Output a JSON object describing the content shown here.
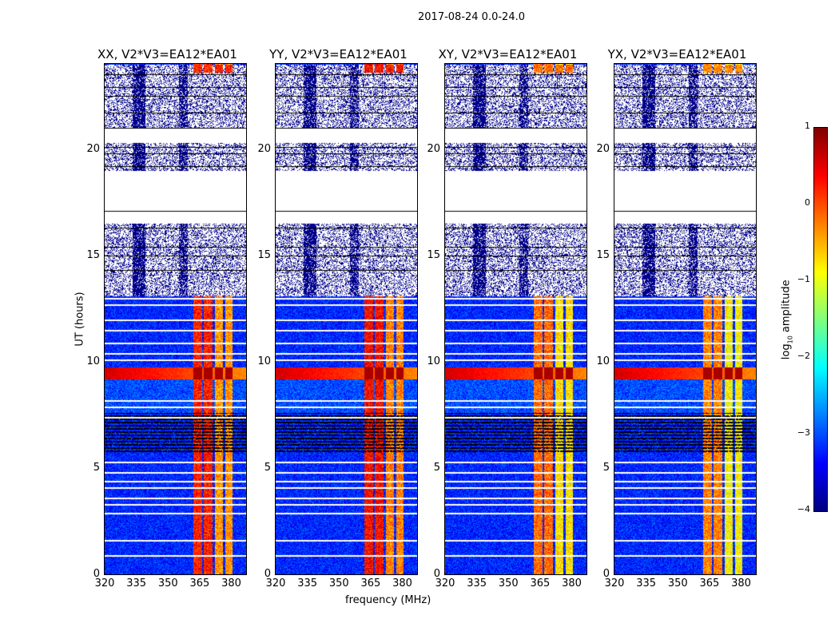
{
  "chart_data": {
    "type": "heatmap",
    "title": "2017-08-24 0.0-24.0",
    "xlabel": "frequency (MHz)",
    "ylabel": "UT (hours)",
    "xlim": [
      320,
      387
    ],
    "ylim": [
      0,
      24
    ],
    "xticks": [
      "320",
      "335",
      "350",
      "365",
      "380"
    ],
    "xtick_values": [
      320,
      335,
      350,
      365,
      380
    ],
    "yticks": [
      "0",
      "5",
      "10",
      "15",
      "20"
    ],
    "ytick_values": [
      0,
      5,
      10,
      15,
      20
    ],
    "colorbar": {
      "label": "log10 amplitude",
      "label_main": "log",
      "label_sub": "10",
      "label_tail": " amplitude",
      "range": [
        -4,
        1
      ],
      "ticks": [
        "1",
        "0",
        "−1",
        "−2",
        "−3",
        "−4"
      ],
      "tick_values": [
        1,
        0,
        -1,
        -2,
        -3,
        -4
      ],
      "colormap": "jet"
    },
    "panels": [
      {
        "title": "XX, V2*V3=EA12*EA01",
        "band_level": 0.0
      },
      {
        "title": "YY, V2*V3=EA12*EA01",
        "band_level": 0.1
      },
      {
        "title": "XY, V2*V3=EA12*EA01",
        "band_level": -0.4
      },
      {
        "title": "YX, V2*V3=EA12*EA01",
        "band_level": -0.5
      }
    ],
    "bands_mhz": [
      [
        362,
        366
      ],
      [
        366.6,
        371
      ],
      [
        372,
        376
      ],
      [
        377,
        380.5
      ]
    ],
    "segments_hours": [
      {
        "from": 0,
        "to": 5.7,
        "kind": "dense",
        "background": -3.2
      },
      {
        "from": 5.7,
        "to": 7.6,
        "kind": "flagged-lines",
        "background": -3.2
      },
      {
        "from": 7.6,
        "to": 9.2,
        "kind": "dense",
        "background": -3.0
      },
      {
        "from": 9.2,
        "to": 9.75,
        "kind": "rfi",
        "background": 0.6
      },
      {
        "from": 9.75,
        "to": 13.1,
        "kind": "dense",
        "background": -3.2
      },
      {
        "from": 13.1,
        "to": 16.5,
        "kind": "sparse",
        "background": -3.8
      },
      {
        "from": 16.5,
        "to": 19.0,
        "kind": "empty",
        "background": -4
      },
      {
        "from": 19.0,
        "to": 20.3,
        "kind": "sparse",
        "background": -3.8
      },
      {
        "from": 20.3,
        "to": 21.0,
        "kind": "empty",
        "background": -4
      },
      {
        "from": 21.0,
        "to": 24.0,
        "kind": "sparse",
        "background": -3.8
      }
    ],
    "flag_lines_hours": [
      0.9,
      1.6,
      2.9,
      3.3,
      3.6,
      4.1,
      4.4,
      4.8,
      5.3,
      7.4,
      7.9,
      8.2,
      10.1,
      10.4,
      10.9,
      11.5,
      12.0,
      12.7,
      13.0,
      14.3,
      15.0,
      15.4,
      16.3,
      17.1,
      19.2,
      19.8,
      20.1,
      21.0,
      21.7,
      22.5,
      22.9,
      23.5
    ]
  }
}
